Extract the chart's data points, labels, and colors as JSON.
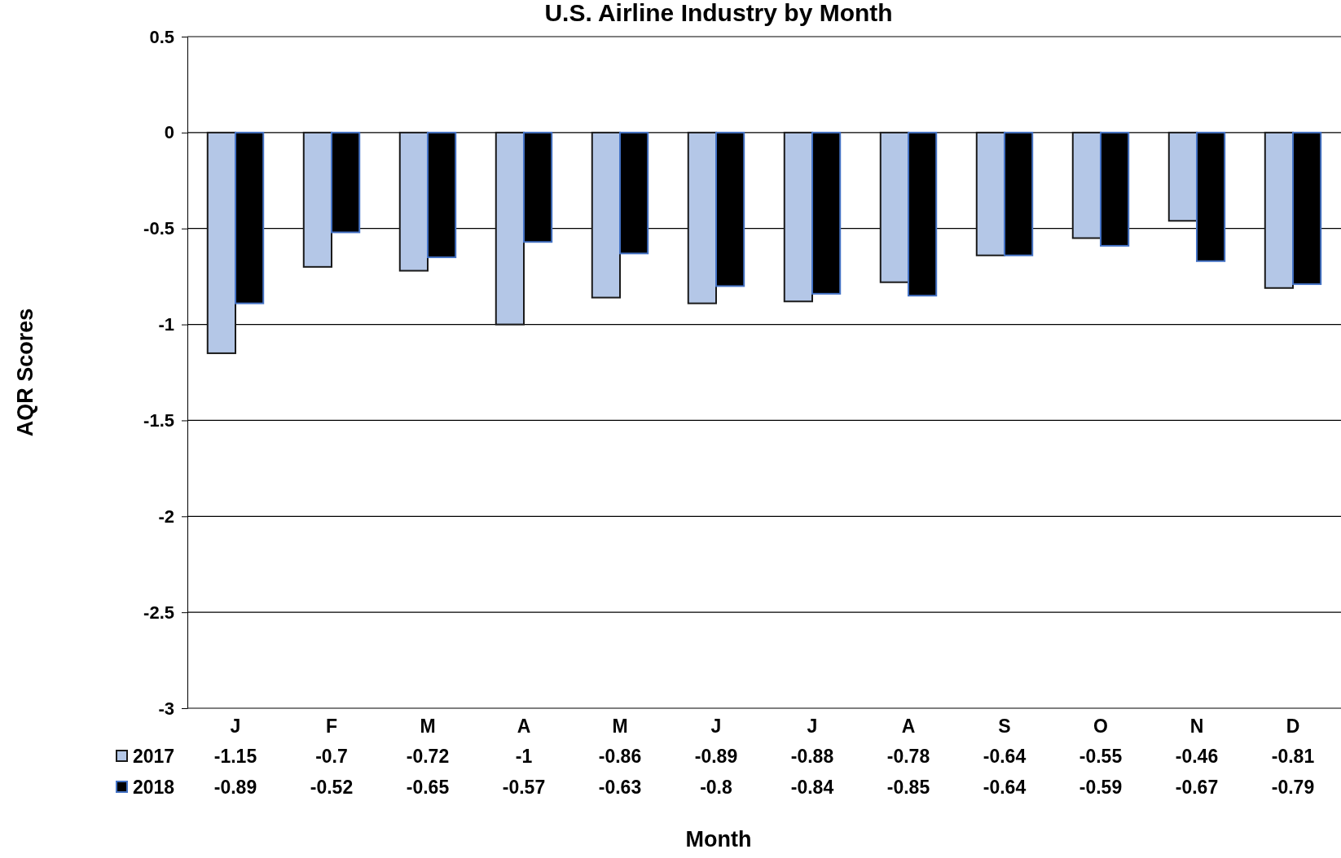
{
  "chart_data": {
    "type": "bar",
    "title": "U.S. Airline Industry by Month",
    "xlabel": "Month",
    "ylabel": "AQR Scores",
    "categories": [
      "J",
      "F",
      "M",
      "A",
      "M",
      "J",
      "J",
      "A",
      "S",
      "O",
      "N",
      "D"
    ],
    "series": [
      {
        "name": "2017",
        "color": "#b4c7e7",
        "values": [
          -1.15,
          -0.7,
          -0.72,
          -1,
          -0.86,
          -0.89,
          -0.88,
          -0.78,
          -0.64,
          -0.55,
          -0.46,
          -0.81
        ]
      },
      {
        "name": "2018",
        "color": "#000000",
        "values": [
          -0.89,
          -0.52,
          -0.65,
          -0.57,
          -0.63,
          -0.8,
          -0.84,
          -0.85,
          -0.64,
          -0.59,
          -0.67,
          -0.79
        ]
      }
    ],
    "ylim": [
      -3,
      0.5
    ],
    "yticks": [
      -3,
      -2.5,
      -2,
      -1.5,
      -1,
      -0.5,
      0,
      0.5
    ],
    "grid": "y",
    "legend": "bottom",
    "data_labels": true
  }
}
